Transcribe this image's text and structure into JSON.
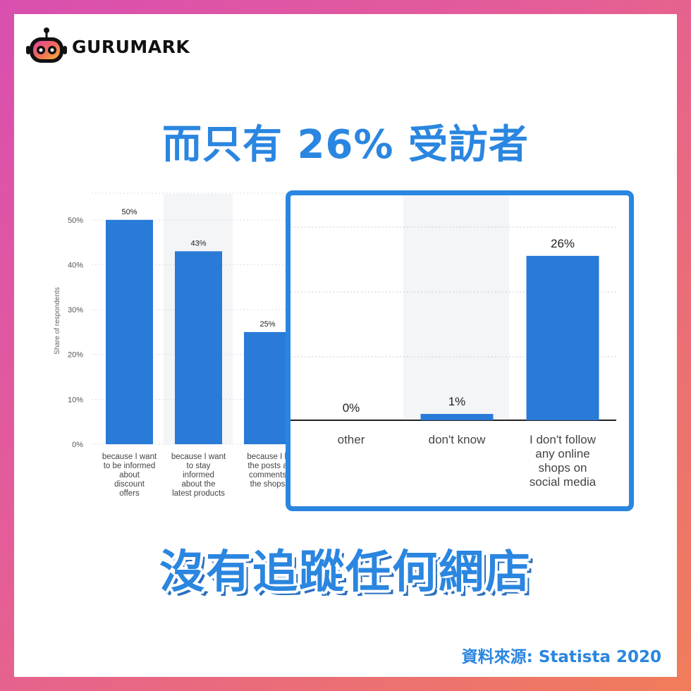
{
  "brand": {
    "name": "GURUMARK"
  },
  "headline": "而只有 26% 受訪者",
  "bottomline": "沒有追蹤任何網店",
  "source": "資料來源: Statista 2020",
  "colors": {
    "accent": "#2a86e0",
    "bar": "#2a7ad8",
    "frame": "#2a86e0"
  },
  "chart_data": [
    {
      "type": "bar",
      "ylabel": "Share of respondents",
      "ylim": [
        0,
        55
      ],
      "yticks": [
        "0%",
        "10%",
        "20%",
        "30%",
        "40%",
        "50%"
      ],
      "ytick_values": [
        0,
        10,
        20,
        30,
        40,
        50
      ],
      "categories": [
        [
          "because I want",
          "to be informed",
          "about",
          "discount",
          "offers"
        ],
        [
          "because I want",
          "to stay",
          "informed",
          "about the",
          "latest products"
        ],
        [
          "because I li",
          "the posts a",
          "comments",
          "the shops"
        ]
      ],
      "values": [
        50,
        43,
        25
      ],
      "labels": [
        "50%",
        "43%",
        "25%"
      ]
    },
    {
      "type": "bar",
      "categories": [
        [
          "other"
        ],
        [
          "don't know"
        ],
        [
          "I don't follow",
          "any online",
          "shops on",
          "social media"
        ]
      ],
      "values": [
        0,
        1,
        26
      ],
      "labels": [
        "0%",
        "1%",
        "26%"
      ]
    }
  ]
}
